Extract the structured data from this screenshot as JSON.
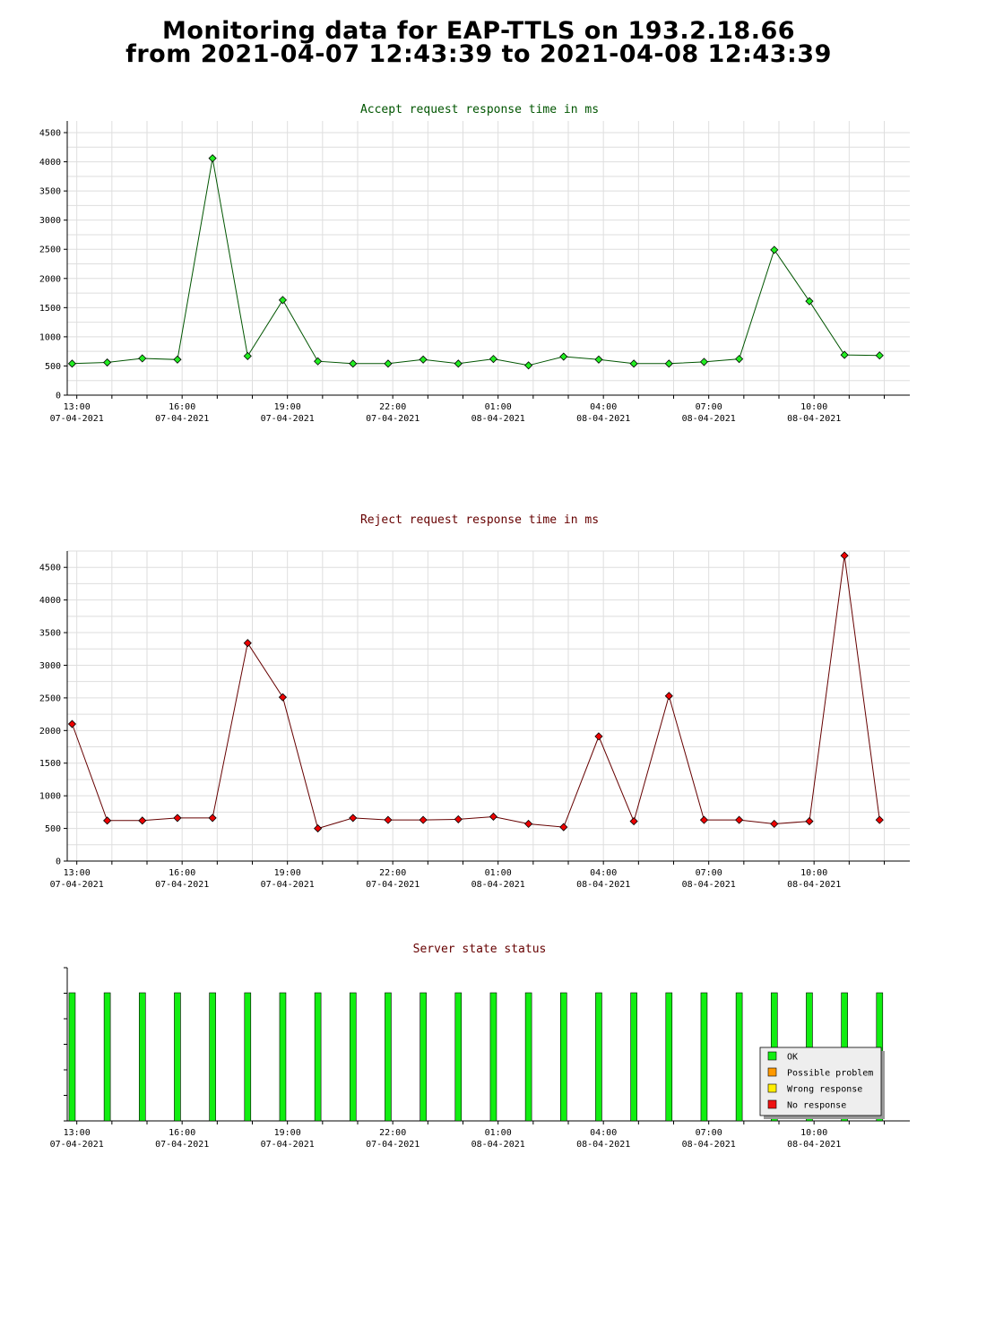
{
  "page": {
    "title_line1": "Monitoring data for EAP-TTLS on 193.2.18.66",
    "title_line2": "from 2021-04-07 12:43:39 to 2021-04-08 12:43:39"
  },
  "colors": {
    "accept_title": "#005500",
    "reject_title": "#660000",
    "status_title": "#660000",
    "accept_line": "#005500",
    "accept_marker": "#22ee22",
    "reject_line": "#660000",
    "reject_marker": "#ee0000",
    "ok_bar": "#11ee11"
  },
  "x_axis": {
    "tick_labels": [
      {
        "time": "13:00",
        "date": "07-04-2021"
      },
      {
        "time": "16:00",
        "date": "07-04-2021"
      },
      {
        "time": "19:00",
        "date": "07-04-2021"
      },
      {
        "time": "22:00",
        "date": "07-04-2021"
      },
      {
        "time": "01:00",
        "date": "08-04-2021"
      },
      {
        "time": "04:00",
        "date": "08-04-2021"
      },
      {
        "time": "07:00",
        "date": "08-04-2021"
      },
      {
        "time": "10:00",
        "date": "08-04-2021"
      }
    ]
  },
  "chart_data": [
    {
      "type": "line",
      "title": "Accept request response time in ms",
      "x": [
        "2021-04-07 12:52",
        "2021-04-07 13:52",
        "2021-04-07 14:52",
        "2021-04-07 15:52",
        "2021-04-07 16:52",
        "2021-04-07 17:52",
        "2021-04-07 18:52",
        "2021-04-07 19:52",
        "2021-04-07 20:52",
        "2021-04-07 21:52",
        "2021-04-07 22:52",
        "2021-04-07 23:52",
        "2021-04-08 00:52",
        "2021-04-08 01:52",
        "2021-04-08 02:52",
        "2021-04-08 03:52",
        "2021-04-08 04:52",
        "2021-04-08 05:52",
        "2021-04-08 06:52",
        "2021-04-08 07:52",
        "2021-04-08 08:52",
        "2021-04-08 09:52",
        "2021-04-08 10:52",
        "2021-04-08 11:52"
      ],
      "values": [
        540,
        560,
        630,
        610,
        4060,
        670,
        1630,
        580,
        540,
        540,
        610,
        540,
        620,
        510,
        660,
        610,
        540,
        540,
        570,
        620,
        2490,
        1610,
        690,
        680
      ],
      "ylim": [
        0,
        4700
      ],
      "yticks": [
        0,
        500,
        1000,
        1500,
        2000,
        2500,
        3000,
        3500,
        4000,
        4500
      ],
      "grid": true
    },
    {
      "type": "line",
      "title": "Reject request response time in ms",
      "x": [
        "2021-04-07 12:52",
        "2021-04-07 13:52",
        "2021-04-07 14:52",
        "2021-04-07 15:52",
        "2021-04-07 16:52",
        "2021-04-07 17:52",
        "2021-04-07 18:52",
        "2021-04-07 19:52",
        "2021-04-07 20:52",
        "2021-04-07 21:52",
        "2021-04-07 22:52",
        "2021-04-07 23:52",
        "2021-04-08 00:52",
        "2021-04-08 01:52",
        "2021-04-08 02:52",
        "2021-04-08 03:52",
        "2021-04-08 04:52",
        "2021-04-08 05:52",
        "2021-04-08 06:52",
        "2021-04-08 07:52",
        "2021-04-08 08:52",
        "2021-04-08 09:52",
        "2021-04-08 10:52",
        "2021-04-08 11:52"
      ],
      "values": [
        2100,
        620,
        620,
        660,
        660,
        3340,
        2510,
        500,
        660,
        630,
        630,
        640,
        680,
        570,
        520,
        1910,
        610,
        2530,
        630,
        630,
        570,
        610,
        4680,
        630
      ],
      "ylim": [
        0,
        4750
      ],
      "yticks": [
        0,
        500,
        1000,
        1500,
        2000,
        2500,
        3000,
        3500,
        4000,
        4500
      ],
      "grid": true
    },
    {
      "type": "bar",
      "title": "Server state status",
      "x": [
        "2021-04-07 12:52",
        "2021-04-07 13:52",
        "2021-04-07 14:52",
        "2021-04-07 15:52",
        "2021-04-07 16:52",
        "2021-04-07 17:52",
        "2021-04-07 18:52",
        "2021-04-07 19:52",
        "2021-04-07 20:52",
        "2021-04-07 21:52",
        "2021-04-07 22:52",
        "2021-04-07 23:52",
        "2021-04-08 00:52",
        "2021-04-08 01:52",
        "2021-04-08 02:52",
        "2021-04-08 03:52",
        "2021-04-08 04:52",
        "2021-04-08 05:52",
        "2021-04-08 06:52",
        "2021-04-08 07:52",
        "2021-04-08 08:52",
        "2021-04-08 09:52",
        "2021-04-08 10:52",
        "2021-04-08 11:52"
      ],
      "states": [
        "OK",
        "OK",
        "OK",
        "OK",
        "OK",
        "OK",
        "OK",
        "OK",
        "OK",
        "OK",
        "OK",
        "OK",
        "OK",
        "OK",
        "OK",
        "OK",
        "OK",
        "OK",
        "OK",
        "OK",
        "OK",
        "OK",
        "OK",
        "OK"
      ],
      "legend": [
        {
          "label": "OK",
          "color": "#11ee11"
        },
        {
          "label": "Possible problem",
          "color": "#ff9900"
        },
        {
          "label": "Wrong response",
          "color": "#ffee00"
        },
        {
          "label": "No response",
          "color": "#ee1111"
        }
      ],
      "legend_position": "bottom-right",
      "grid": false
    }
  ]
}
